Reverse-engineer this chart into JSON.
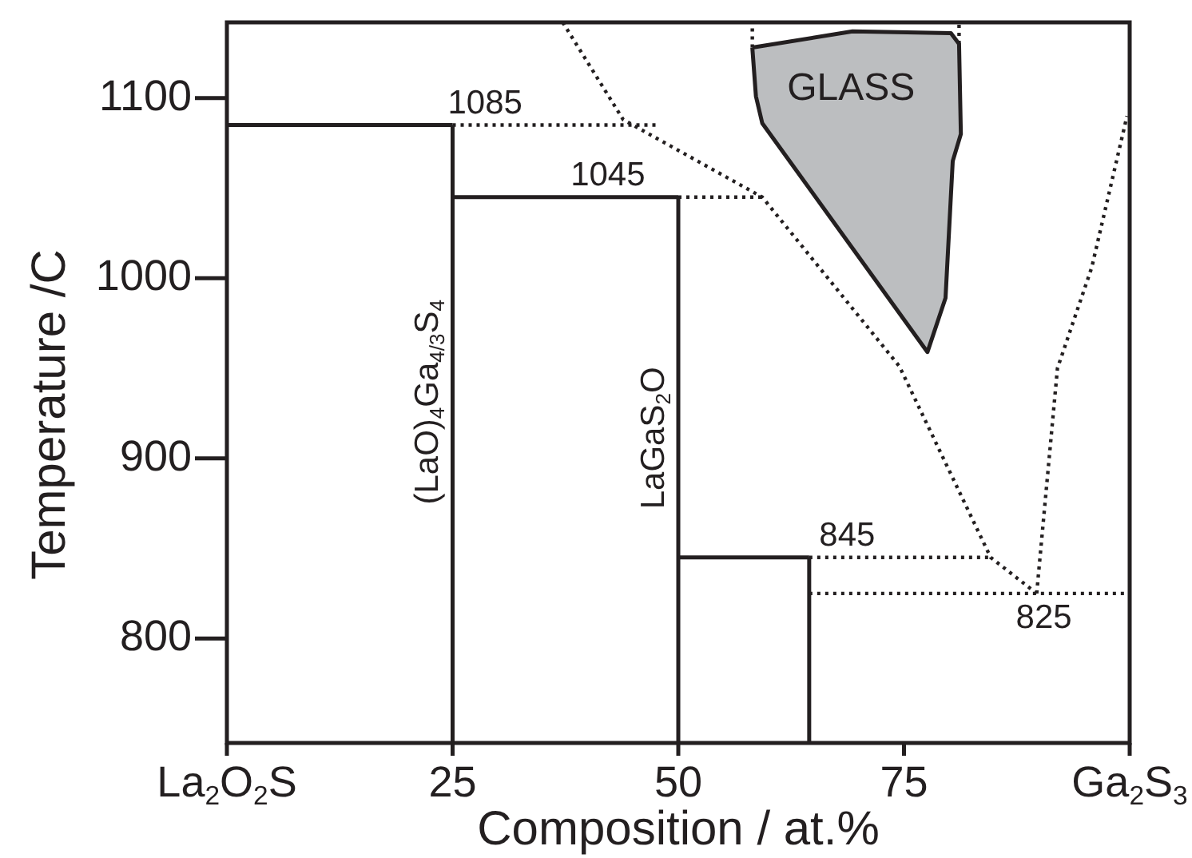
{
  "chart_data": {
    "type": "line",
    "xlabel": "Composition / at.%",
    "ylabel": "Temperature /C",
    "xlim": [
      0,
      100
    ],
    "xticks": [
      {
        "value": 0,
        "label": "La$_{2}$O$_{2}$S"
      },
      25,
      50,
      75,
      {
        "value": 100,
        "label": "Ga$_{2}$S$_{3}$"
      }
    ],
    "ylim": [
      742,
      1142
    ],
    "yticks": [
      800,
      900,
      1000,
      1100
    ],
    "grid": false,
    "legend": false,
    "annotations": [
      {
        "text": "1085",
        "x": 28.6,
        "y": 1085
      },
      {
        "text": "1045",
        "x": 42.2,
        "y": 1045
      },
      {
        "text": "845",
        "x": 68.7,
        "y": 845
      },
      {
        "text": "825",
        "x": 90.5,
        "y": 825
      }
    ],
    "series": [
      {
        "line_style": "solid",
        "color": "#231f20",
        "x": [
          0,
          25
        ],
        "values": [
          1085,
          1085
        ]
      },
      {
        "line_style": "solid",
        "color": "#231f20",
        "x": [
          25,
          25
        ],
        "values": [
          742,
          1085
        ],
        "name": "(LaO)$_{4}$Ga$_{4/3}$S$_{4}$"
      },
      {
        "line_style": "solid",
        "color": "#231f20",
        "x": [
          25,
          50
        ],
        "values": [
          1045,
          1045
        ]
      },
      {
        "line_style": "solid",
        "color": "#231f20",
        "x": [
          50,
          50
        ],
        "values": [
          742,
          1045
        ],
        "name": "LaGaS$_{2}$O"
      },
      {
        "line_style": "solid",
        "color": "#231f20",
        "x": [
          50,
          64.5
        ],
        "values": [
          845,
          845
        ]
      },
      {
        "line_style": "solid",
        "color": "#231f20",
        "x": [
          64.5,
          64.5
        ],
        "values": [
          742,
          845
        ]
      },
      {
        "line_style": "dotted",
        "color": "#231f20",
        "x": [
          25,
          47.7
        ],
        "values": [
          1085,
          1085
        ]
      },
      {
        "line_style": "dotted",
        "color": "#231f20",
        "x": [
          50,
          59.3
        ],
        "values": [
          1045,
          1045
        ]
      },
      {
        "line_style": "dotted",
        "color": "#231f20",
        "x": [
          64.5,
          84.6
        ],
        "values": [
          845,
          845
        ]
      },
      {
        "line_style": "dotted",
        "color": "#231f20",
        "x": [
          64.5,
          100
        ],
        "values": [
          825,
          825
        ]
      },
      {
        "line_style": "dotted",
        "color": "#231f20",
        "x": [
          37.2,
          43.9,
          59.3,
          74.5,
          84.6,
          89.7
        ],
        "values": [
          1142,
          1088,
          1045,
          951,
          845,
          825
        ]
      },
      {
        "line_style": "dotted",
        "color": "#231f20",
        "x": [
          89.7,
          92,
          95.8,
          99.7
        ],
        "values": [
          825,
          950,
          1006,
          1090
        ]
      },
      {
        "line_style": "dotted",
        "color": "#231f20",
        "x": [
          58.2,
          58.2
        ],
        "values": [
          1128,
          1142
        ]
      },
      {
        "line_style": "dotted",
        "color": "#231f20",
        "x": [
          81.1,
          81.1
        ],
        "values": [
          1130,
          1142
        ]
      },
      {
        "type": "area",
        "color": "#bcbec0",
        "name": "GLASS",
        "x": [
          58.2,
          69.3,
          80.2,
          81.1,
          81.3,
          80.4,
          79.6,
          77.6,
          59.3,
          58.6,
          58.2
        ],
        "values": [
          1128,
          1137,
          1136,
          1130,
          1080,
          1065,
          989,
          959,
          1086,
          1101,
          1128
        ]
      }
    ]
  }
}
